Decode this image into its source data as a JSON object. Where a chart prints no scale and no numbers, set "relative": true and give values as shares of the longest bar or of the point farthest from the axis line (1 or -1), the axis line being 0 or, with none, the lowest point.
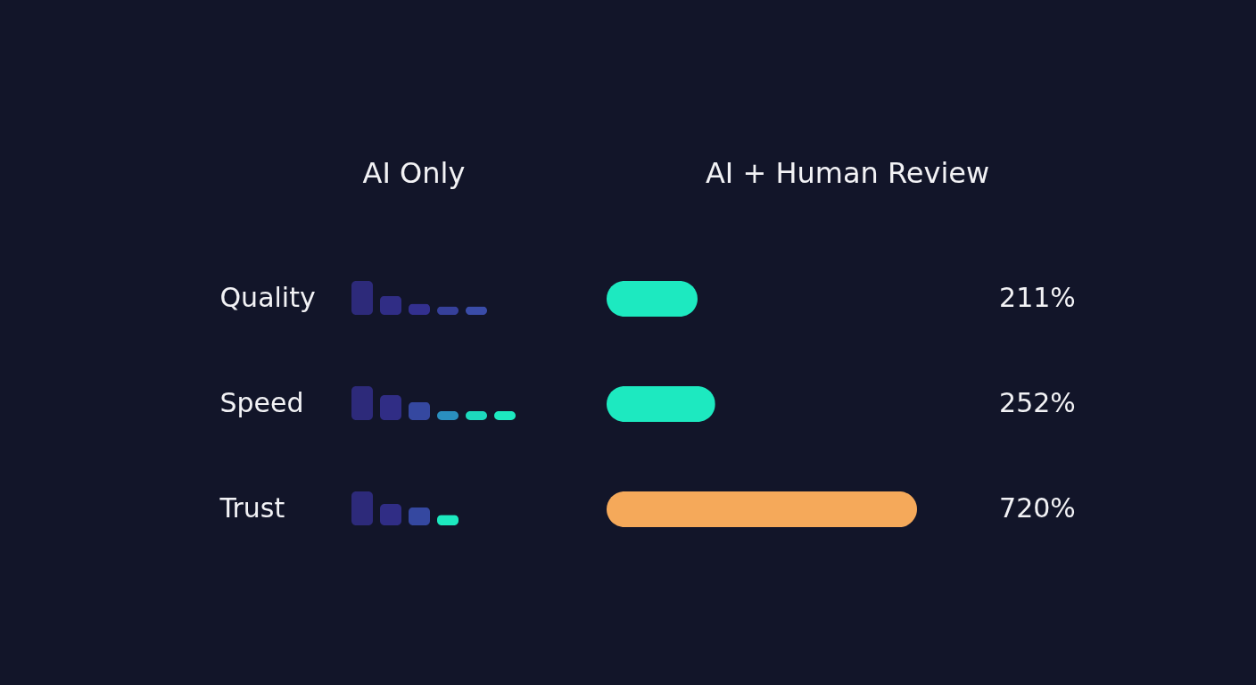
{
  "chart_data": [
    {
      "type": "bar",
      "orientation": "horizontal",
      "title": "AI + Human Review",
      "categories": [
        "Quality",
        "Speed",
        "Trust"
      ],
      "values": [
        211,
        252,
        720
      ],
      "value_labels": [
        "211%",
        "252%",
        "720%"
      ],
      "colors": [
        "#1de9c0",
        "#1de9c0",
        "#f5a95a"
      ],
      "annotations": [
        "AI Only"
      ]
    },
    {
      "type": "bar",
      "relative": true,
      "categories": [
        null,
        null,
        null,
        null,
        null
      ],
      "values": [
        1,
        0.56,
        0.33,
        0.25,
        0.25
      ],
      "colors": [
        "#2d2a7a",
        "#302d85",
        "#33308f",
        "#36409a",
        "#3a4ca8"
      ]
    },
    {
      "type": "bar",
      "relative": true,
      "categories": [
        null,
        null,
        null,
        null,
        null,
        null
      ],
      "values": [
        1,
        0.74,
        0.53,
        0.26,
        0.26,
        0.26
      ],
      "colors": [
        "#2d2a7a",
        "#302d85",
        "#3548a0",
        "#2a8fbf",
        "#1dd9bd",
        "#1de9c0"
      ]
    },
    {
      "type": "bar",
      "relative": true,
      "categories": [
        null,
        null,
        null,
        null
      ],
      "values": [
        1,
        0.63,
        0.53,
        0.31
      ],
      "colors": [
        "#2d2a7a",
        "#302d85",
        "#3548a0",
        "#1de9c0"
      ]
    }
  ]
}
